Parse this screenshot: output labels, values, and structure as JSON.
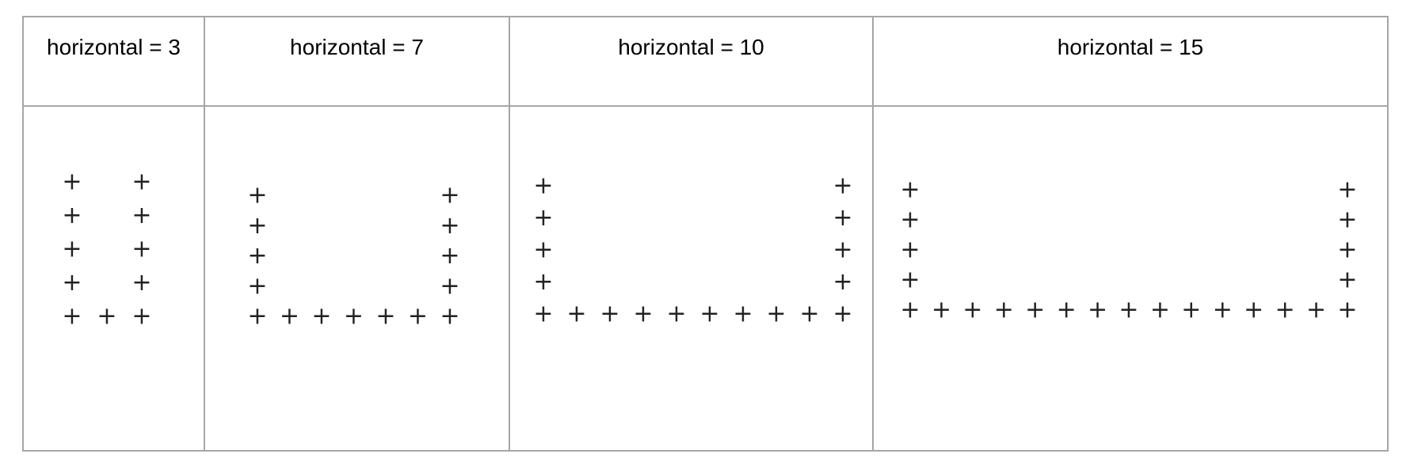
{
  "panels": [
    {
      "label": "horizontal = 3",
      "horizontal": 3,
      "vertical": 5,
      "marker": "+"
    },
    {
      "label": "horizontal = 7",
      "horizontal": 7,
      "vertical": 5,
      "marker": "+"
    },
    {
      "label": "horizontal = 10",
      "horizontal": 10,
      "vertical": 5,
      "marker": "+"
    },
    {
      "label": "horizontal = 15",
      "horizontal": 15,
      "vertical": 5,
      "marker": "+"
    }
  ],
  "colors": {
    "border": "#a6a6a6",
    "marker": "#222222",
    "text": "#000000"
  }
}
